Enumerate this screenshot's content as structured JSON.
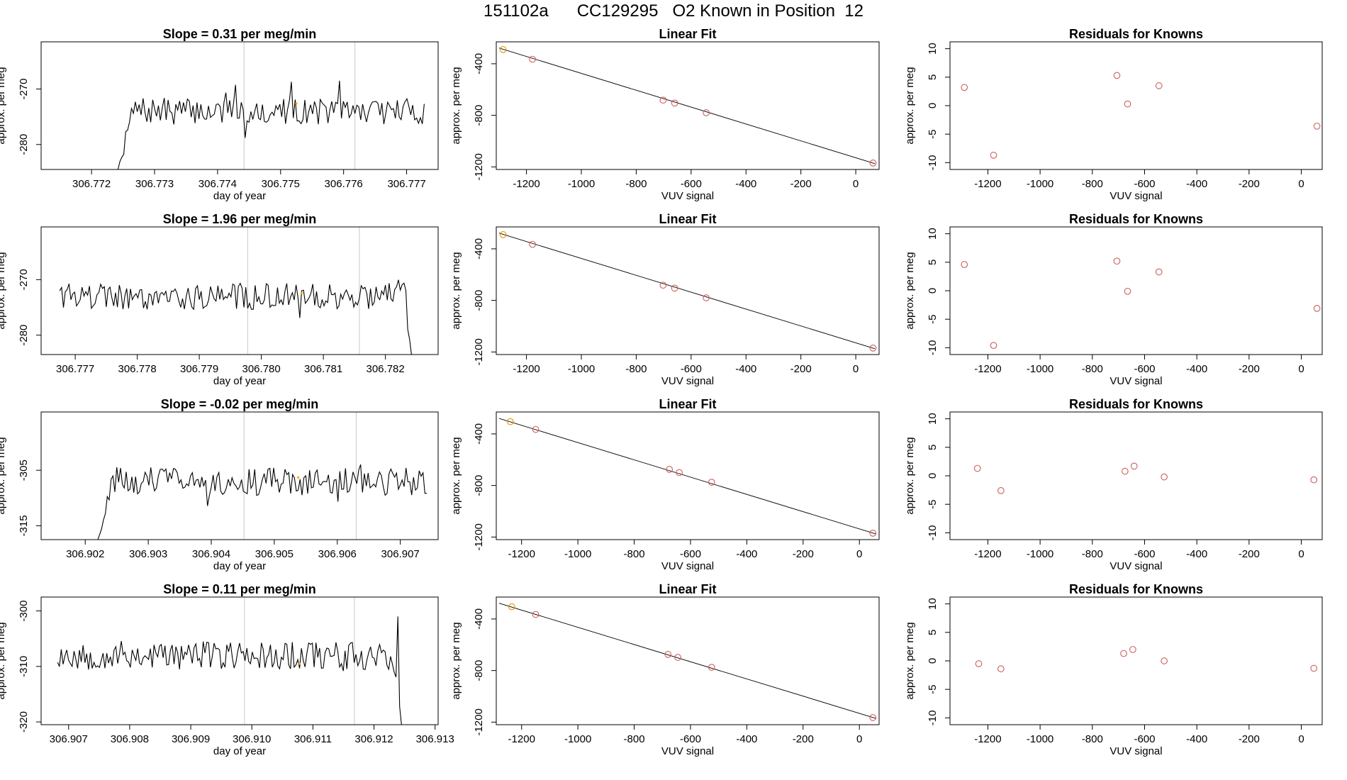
{
  "page": {
    "title": "151102a      CC129295   O2 Known in Position  12"
  },
  "chart_data": [
    {
      "type": "line",
      "title": "Slope =  0.31  per meg/min",
      "xlabel": "day of year",
      "ylabel": "approx. per meg",
      "xlim": [
        306.7712,
        306.7775
      ],
      "ylim": [
        -284.5,
        -261.5
      ],
      "xticks": [
        306.772,
        306.773,
        306.774,
        306.775,
        306.776,
        306.777
      ],
      "xtick_labels": [
        "306.772",
        "306.773",
        "306.774",
        "306.775",
        "306.776",
        "306.777"
      ],
      "yticks": [
        -270,
        -280
      ],
      "ytick_labels": [
        "-270",
        "-280"
      ],
      "x_start": 306.77242,
      "x_end": 306.77728,
      "n_points": 160,
      "start_value": -284.5,
      "plateau_start": 306.77265,
      "plateau_level": -274,
      "noise_amplitude": 2.4,
      "seed": 7,
      "vlines": [
        306.77442,
        306.77618
      ],
      "highlight": {
        "x": 306.77525,
        "y": -272.6,
        "color": "#ffa500"
      },
      "color": "#000000"
    },
    {
      "type": "scatter",
      "title": "Linear Fit",
      "xlabel": "VUV signal",
      "ylabel": "approx. per meg",
      "xlim": [
        -1310,
        85
      ],
      "ylim": [
        -1220,
        -230
      ],
      "xticks": [
        -1200,
        -1000,
        -800,
        -600,
        -400,
        -200,
        0
      ],
      "xtick_labels": [
        "-1200",
        "-1000",
        "-800",
        "-600",
        "-400",
        "-200",
        "0"
      ],
      "yticks": [
        -400,
        -800,
        -1200
      ],
      "ytick_labels": [
        "-400",
        "-800",
        "-1200"
      ],
      "points": [
        {
          "x": -1285,
          "y": -290,
          "color": "#e69500"
        },
        {
          "x": -1178,
          "y": -365,
          "color": "#cd5c5c"
        },
        {
          "x": -702,
          "y": -682,
          "color": "#cd5c5c"
        },
        {
          "x": -660,
          "y": -705,
          "color": "#cd5c5c"
        },
        {
          "x": -545,
          "y": -780,
          "color": "#cd5c5c"
        },
        {
          "x": 63,
          "y": -1170,
          "color": "#cd5c5c"
        }
      ],
      "fit_line": {
        "x": [
          -1300,
          70
        ],
        "y": [
          -278,
          -1175
        ]
      }
    },
    {
      "type": "scatter",
      "title": "Residuals for Knowns",
      "xlabel": "VUV signal",
      "ylabel": "approx. per meg",
      "xlim": [
        -1345,
        80
      ],
      "ylim": [
        -11.2,
        11.2
      ],
      "xticks": [
        -1200,
        -1000,
        -800,
        -600,
        -400,
        -200,
        0
      ],
      "xtick_labels": [
        "-1200",
        "-1000",
        "-800",
        "-600",
        "-400",
        "-200",
        "0"
      ],
      "yticks": [
        10,
        5,
        0,
        -5,
        -10
      ],
      "ytick_labels": [
        "10",
        "5",
        "0",
        "-5",
        "-10"
      ],
      "points": [
        {
          "x": -1290,
          "y": 3.2,
          "color": "#cd5c5c"
        },
        {
          "x": -1178,
          "y": -8.7,
          "color": "#cd5c5c"
        },
        {
          "x": -706,
          "y": 5.3,
          "color": "#cd5c5c"
        },
        {
          "x": -665,
          "y": 0.3,
          "color": "#cd5c5c"
        },
        {
          "x": -545,
          "y": 3.5,
          "color": "#cd5c5c"
        },
        {
          "x": 60,
          "y": -3.6,
          "color": "#cd5c5c"
        }
      ]
    },
    {
      "type": "line",
      "title": "Slope =  1.96  per meg/min",
      "xlabel": "day of year",
      "ylabel": "approx. per meg",
      "xlim": [
        306.77645,
        306.78285
      ],
      "ylim": [
        -283.5,
        -260.5
      ],
      "xticks": [
        306.777,
        306.778,
        306.779,
        306.78,
        306.781,
        306.782
      ],
      "xtick_labels": [
        "306.777",
        "306.778",
        "306.779",
        "306.780",
        "306.781",
        "306.782"
      ],
      "yticks": [
        -270,
        -280
      ],
      "ytick_labels": [
        "-270",
        "-280"
      ],
      "x_start": 306.77675,
      "x_end": 306.78242,
      "n_points": 190,
      "plateau_level": -273,
      "noise_amplitude": 2.4,
      "end_drop_start": 306.7823,
      "end_value": -283.5,
      "seed": 19,
      "vlines": [
        306.77978,
        306.78158
      ],
      "highlight": {
        "x": 306.78065,
        "y": -272.4,
        "color": "#ffa500"
      },
      "color": "#000000"
    },
    {
      "type": "scatter",
      "title": "Linear Fit",
      "xlabel": "VUV signal",
      "ylabel": "approx. per meg",
      "xlim": [
        -1310,
        85
      ],
      "ylim": [
        -1220,
        -230
      ],
      "xticks": [
        -1200,
        -1000,
        -800,
        -600,
        -400,
        -200,
        0
      ],
      "xtick_labels": [
        "-1200",
        "-1000",
        "-800",
        "-600",
        "-400",
        "-200",
        "0"
      ],
      "yticks": [
        -400,
        -800,
        -1200
      ],
      "ytick_labels": [
        "-400",
        "-800",
        "-1200"
      ],
      "points": [
        {
          "x": -1285,
          "y": -290,
          "color": "#e69500"
        },
        {
          "x": -1178,
          "y": -365,
          "color": "#cd5c5c"
        },
        {
          "x": -702,
          "y": -682,
          "color": "#cd5c5c"
        },
        {
          "x": -660,
          "y": -705,
          "color": "#cd5c5c"
        },
        {
          "x": -545,
          "y": -780,
          "color": "#cd5c5c"
        },
        {
          "x": 63,
          "y": -1170,
          "color": "#cd5c5c"
        }
      ],
      "fit_line": {
        "x": [
          -1300,
          70
        ],
        "y": [
          -278,
          -1175
        ]
      }
    },
    {
      "type": "scatter",
      "title": "Residuals for Knowns",
      "xlabel": "VUV signal",
      "ylabel": "approx. per meg",
      "xlim": [
        -1345,
        80
      ],
      "ylim": [
        -11.2,
        11.2
      ],
      "xticks": [
        -1200,
        -1000,
        -800,
        -600,
        -400,
        -200,
        0
      ],
      "xtick_labels": [
        "-1200",
        "-1000",
        "-800",
        "-600",
        "-400",
        "-200",
        "0"
      ],
      "yticks": [
        10,
        5,
        0,
        -5,
        -10
      ],
      "ytick_labels": [
        "10",
        "5",
        "0",
        "-5",
        "-10"
      ],
      "points": [
        {
          "x": -1290,
          "y": 4.6,
          "color": "#cd5c5c"
        },
        {
          "x": -1178,
          "y": -9.6,
          "color": "#cd5c5c"
        },
        {
          "x": -706,
          "y": 5.2,
          "color": "#cd5c5c"
        },
        {
          "x": -665,
          "y": -0.1,
          "color": "#cd5c5c"
        },
        {
          "x": -545,
          "y": 3.3,
          "color": "#cd5c5c"
        },
        {
          "x": 60,
          "y": -3.1,
          "color": "#cd5c5c"
        }
      ]
    },
    {
      "type": "line",
      "title": "Slope =  -0.02  per meg/min",
      "xlabel": "day of year",
      "ylabel": "approx. per meg",
      "xlim": [
        306.9013,
        306.9076
      ],
      "ylim": [
        -317.5,
        -294.5
      ],
      "xticks": [
        306.902,
        306.903,
        306.904,
        306.905,
        306.906,
        306.907
      ],
      "xtick_labels": [
        "306.902",
        "306.903",
        "306.904",
        "306.905",
        "306.906",
        "306.907"
      ],
      "yticks": [
        -305,
        -315
      ],
      "ytick_labels": [
        "-305",
        "-315"
      ],
      "x_start": 306.9022,
      "x_end": 306.90742,
      "n_points": 175,
      "start_value": -317.5,
      "plateau_start": 306.90245,
      "plateau_level": -307,
      "noise_amplitude": 2.6,
      "seed": 31,
      "vlines": [
        306.90452,
        306.9063
      ],
      "highlight": {
        "x": 306.90538,
        "y": -306.3,
        "color": "#ffa500"
      },
      "color": "#000000"
    },
    {
      "type": "scatter",
      "title": "Linear Fit",
      "xlabel": "VUV signal",
      "ylabel": "approx. per meg",
      "xlim": [
        -1290,
        70
      ],
      "ylim": [
        -1220,
        -230
      ],
      "xticks": [
        -1200,
        -1000,
        -800,
        -600,
        -400,
        -200,
        0
      ],
      "xtick_labels": [
        "-1200",
        "-1000",
        "-800",
        "-600",
        "-400",
        "-200",
        "0"
      ],
      "yticks": [
        -400,
        -800,
        -1200
      ],
      "ytick_labels": [
        "-400",
        "-800",
        "-1200"
      ],
      "points": [
        {
          "x": -1240,
          "y": -305,
          "color": "#e69500"
        },
        {
          "x": -1150,
          "y": -365,
          "color": "#cd5c5c"
        },
        {
          "x": -675,
          "y": -675,
          "color": "#cd5c5c"
        },
        {
          "x": -640,
          "y": -700,
          "color": "#cd5c5c"
        },
        {
          "x": -525,
          "y": -775,
          "color": "#cd5c5c"
        },
        {
          "x": 48,
          "y": -1170,
          "color": "#cd5c5c"
        }
      ],
      "fit_line": {
        "x": [
          -1280,
          60
        ],
        "y": [
          -280,
          -1177
        ]
      }
    },
    {
      "type": "scatter",
      "title": "Residuals for Knowns",
      "xlabel": "VUV signal",
      "ylabel": "approx. per meg",
      "xlim": [
        -1345,
        80
      ],
      "ylim": [
        -11.2,
        11.2
      ],
      "xticks": [
        -1200,
        -1000,
        -800,
        -600,
        -400,
        -200,
        0
      ],
      "xtick_labels": [
        "-1200",
        "-1000",
        "-800",
        "-600",
        "-400",
        "-200",
        "0"
      ],
      "yticks": [
        10,
        5,
        0,
        -5,
        -10
      ],
      "ytick_labels": [
        "10",
        "5",
        "0",
        "-5",
        "-10"
      ],
      "points": [
        {
          "x": -1240,
          "y": 1.3,
          "color": "#cd5c5c"
        },
        {
          "x": -1150,
          "y": -2.6,
          "color": "#cd5c5c"
        },
        {
          "x": -675,
          "y": 0.8,
          "color": "#cd5c5c"
        },
        {
          "x": -640,
          "y": 1.7,
          "color": "#cd5c5c"
        },
        {
          "x": -525,
          "y": -0.2,
          "color": "#cd5c5c"
        },
        {
          "x": 48,
          "y": -0.7,
          "color": "#cd5c5c"
        }
      ]
    },
    {
      "type": "line",
      "title": "Slope =  0.11  per meg/min",
      "xlabel": "day of year",
      "ylabel": "approx. per meg",
      "xlim": [
        306.90655,
        306.91305
      ],
      "ylim": [
        -320.5,
        -297.5
      ],
      "xticks": [
        306.907,
        306.908,
        306.909,
        306.91,
        306.911,
        306.912,
        306.913
      ],
      "xtick_labels": [
        "306.907",
        "306.908",
        "306.909",
        "306.910",
        "306.911",
        "306.912",
        "306.913"
      ],
      "yticks": [
        -300,
        -310,
        -320
      ],
      "ytick_labels": [
        "-300",
        "-310",
        "-320"
      ],
      "x_start": 306.90682,
      "x_end": 306.91245,
      "n_points": 190,
      "plateau_level": -308,
      "noise_amplitude": 2.6,
      "end_drop_start": 306.91232,
      "end_value": -320.5,
      "spike": {
        "x": 306.9124,
        "y": -301
      },
      "seed": 53,
      "vlines": [
        306.90988,
        306.91168
      ],
      "highlight": {
        "x": 306.91078,
        "y": -309.5,
        "color": "#ffa500"
      },
      "color": "#000000"
    },
    {
      "type": "scatter",
      "title": "Linear Fit",
      "xlabel": "VUV signal",
      "ylabel": "approx. per meg",
      "xlim": [
        -1290,
        70
      ],
      "ylim": [
        -1220,
        -230
      ],
      "xticks": [
        -1200,
        -1000,
        -800,
        -600,
        -400,
        -200,
        0
      ],
      "xtick_labels": [
        "-1200",
        "-1000",
        "-800",
        "-600",
        "-400",
        "-200",
        "0"
      ],
      "yticks": [
        -400,
        -800,
        -1200
      ],
      "ytick_labels": [
        "-400",
        "-800",
        "-1200"
      ],
      "points": [
        {
          "x": -1235,
          "y": -305,
          "color": "#e69500"
        },
        {
          "x": -1150,
          "y": -365,
          "color": "#cd5c5c"
        },
        {
          "x": -680,
          "y": -675,
          "color": "#cd5c5c"
        },
        {
          "x": -645,
          "y": -698,
          "color": "#cd5c5c"
        },
        {
          "x": -525,
          "y": -775,
          "color": "#cd5c5c"
        },
        {
          "x": 48,
          "y": -1165,
          "color": "#cd5c5c"
        }
      ],
      "fit_line": {
        "x": [
          -1280,
          60
        ],
        "y": [
          -278,
          -1172
        ]
      }
    },
    {
      "type": "scatter",
      "title": "Residuals for Knowns",
      "xlabel": "VUV signal",
      "ylabel": "approx. per meg",
      "xlim": [
        -1345,
        80
      ],
      "ylim": [
        -11.2,
        11.2
      ],
      "xticks": [
        -1200,
        -1000,
        -800,
        -600,
        -400,
        -200,
        0
      ],
      "xtick_labels": [
        "-1200",
        "-1000",
        "-800",
        "-600",
        "-400",
        "-200",
        "0"
      ],
      "yticks": [
        10,
        5,
        0,
        -5,
        -10
      ],
      "ytick_labels": [
        "10",
        "5",
        "0",
        "-5",
        "-10"
      ],
      "points": [
        {
          "x": -1235,
          "y": -0.5,
          "color": "#cd5c5c"
        },
        {
          "x": -1150,
          "y": -1.4,
          "color": "#cd5c5c"
        },
        {
          "x": -680,
          "y": 1.3,
          "color": "#cd5c5c"
        },
        {
          "x": -645,
          "y": 2.0,
          "color": "#cd5c5c"
        },
        {
          "x": -525,
          "y": 0.0,
          "color": "#cd5c5c"
        },
        {
          "x": 48,
          "y": -1.3,
          "color": "#cd5c5c"
        }
      ]
    }
  ]
}
